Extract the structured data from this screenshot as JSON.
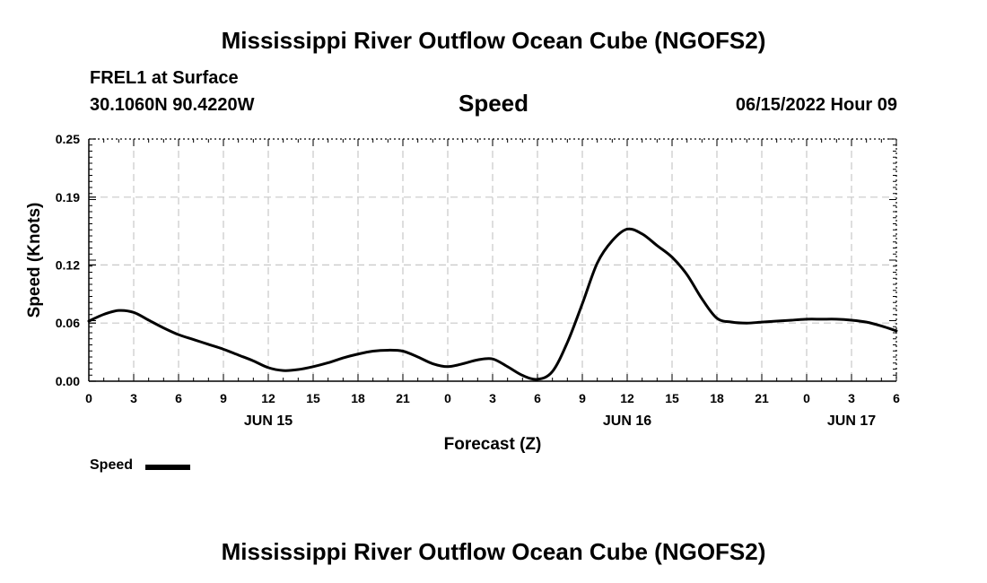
{
  "header": {
    "main_title": "Mississippi River Outflow Ocean Cube (NGOFS2)",
    "station": "FREL1 at Surface",
    "coords": "30.1060N  90.4220W",
    "variable": "Speed",
    "datetime": "06/15/2022 Hour 09"
  },
  "footer": {
    "repeated_title": "Mississippi River Outflow Ocean Cube (NGOFS2)"
  },
  "legend": {
    "label": "Speed",
    "line_color": "#000000"
  },
  "chart_data": {
    "type": "line",
    "title": "Speed",
    "xlabel": "Forecast (Z)",
    "ylabel": "Speed (Knots)",
    "xlim": [
      0,
      54
    ],
    "ylim": [
      0,
      0.25
    ],
    "grid": true,
    "x_tick_values": [
      0,
      3,
      6,
      9,
      12,
      15,
      18,
      21,
      24,
      27,
      30,
      33,
      36,
      39,
      42,
      45,
      48,
      51,
      54
    ],
    "x_tick_labels": [
      "0",
      "3",
      "6",
      "9",
      "12",
      "15",
      "18",
      "21",
      "0",
      "3",
      "6",
      "9",
      "12",
      "15",
      "18",
      "21",
      "0",
      "3",
      "6"
    ],
    "y_tick_values": [
      0,
      0.06,
      0.12,
      0.19,
      0.25
    ],
    "y_tick_labels": [
      "0.00",
      "0.06",
      "0.12",
      "0.19",
      "0.25"
    ],
    "day_labels": [
      {
        "x": 12,
        "label": "JUN 15"
      },
      {
        "x": 36,
        "label": "JUN 16"
      },
      {
        "x": 51,
        "label": "JUN 17"
      }
    ],
    "series": [
      {
        "name": "Speed",
        "color": "#000000",
        "x": [
          0,
          1,
          2,
          3,
          4,
          5,
          6,
          7,
          8,
          9,
          10,
          11,
          12,
          13,
          14,
          15,
          16,
          17,
          18,
          19,
          20,
          21,
          22,
          23,
          24,
          25,
          26,
          27,
          28,
          29,
          30,
          31,
          32,
          33,
          34,
          35,
          36,
          37,
          38,
          39,
          40,
          41,
          42,
          43,
          44,
          45,
          46,
          47,
          48,
          49,
          50,
          51,
          52,
          53,
          54
        ],
        "values": [
          0.062,
          0.069,
          0.073,
          0.071,
          0.063,
          0.055,
          0.048,
          0.043,
          0.038,
          0.033,
          0.027,
          0.021,
          0.014,
          0.011,
          0.012,
          0.015,
          0.019,
          0.024,
          0.028,
          0.031,
          0.032,
          0.031,
          0.025,
          0.018,
          0.015,
          0.018,
          0.022,
          0.023,
          0.015,
          0.006,
          0.002,
          0.01,
          0.04,
          0.08,
          0.122,
          0.145,
          0.157,
          0.152,
          0.14,
          0.128,
          0.11,
          0.085,
          0.065,
          0.061,
          0.06,
          0.061,
          0.062,
          0.063,
          0.064,
          0.064,
          0.064,
          0.063,
          0.061,
          0.057,
          0.052
        ]
      }
    ]
  }
}
